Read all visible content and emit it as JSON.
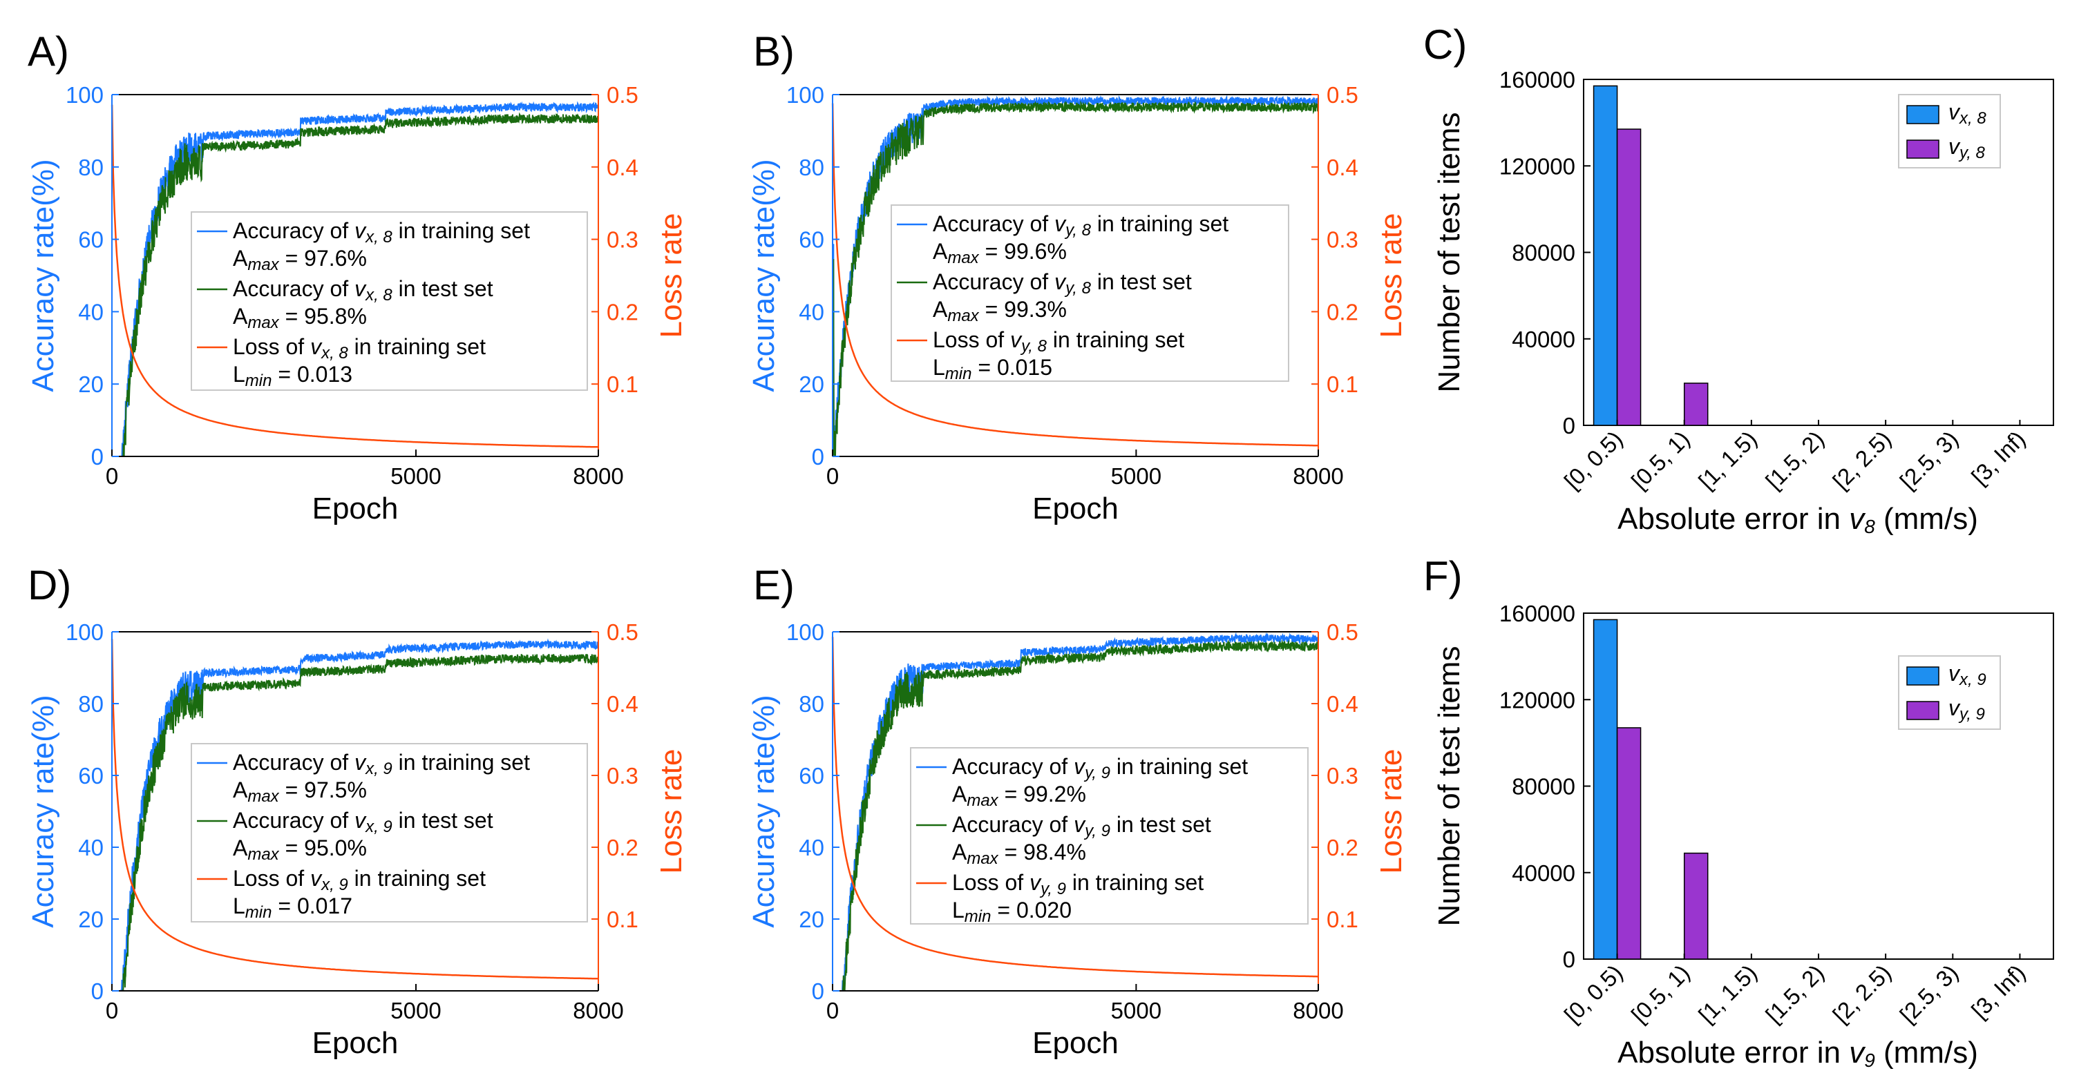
{
  "colors": {
    "train": "#1a78ff",
    "test": "#1a6b10",
    "loss": "#ff4a0a",
    "acc_axis": "#1a78ff",
    "loss_axis": "#ff4a0a",
    "bar_x": "#1e8ff0",
    "bar_y": "#9a35cf"
  },
  "chart_data": [
    {
      "id": "A",
      "label": "A)",
      "type": "line",
      "xlabel": "Epoch",
      "ylabel_left": "Accuracy rate(%)",
      "ylabel_right": "Loss rate",
      "xlim": [
        0,
        8000
      ],
      "ylim_left": [
        0,
        100
      ],
      "ylim_right": [
        0,
        0.5
      ],
      "xticks": [
        0,
        5000,
        8000
      ],
      "yticks_left": [
        0,
        20,
        40,
        60,
        80,
        100
      ],
      "yticks_right": [
        0.1,
        0.2,
        0.3,
        0.4,
        0.5
      ],
      "x_tick_labels": [
        "0",
        "5000",
        "8000"
      ],
      "yleft_tick_labels": [
        "0",
        "20",
        "40",
        "60",
        "80",
        "100"
      ],
      "yright_tick_labels": [
        "0.1",
        "0.2",
        "0.3",
        "0.4",
        "0.5"
      ],
      "series": [
        {
          "name": "Accuracy of vx, 8 in training set",
          "role": "train",
          "final_accuracy": 97.6
        },
        {
          "name": "Accuracy of vx, 8 in test set",
          "role": "test",
          "final_accuracy": 95.8
        },
        {
          "name": "Loss of vx, 8 in training set",
          "role": "loss",
          "final_loss": 0.013
        }
      ],
      "legend": [
        {
          "pre": "Accuracy of ",
          "v": "v",
          "sub": "x, 8",
          "post": " in training set",
          "stat_pre": "A",
          "stat_sub": "max",
          "stat_post": " = 97.6%"
        },
        {
          "pre": "Accuracy of ",
          "v": "v",
          "sub": "x, 8",
          "post": " in test set",
          "stat_pre": "A",
          "stat_sub": "max",
          "stat_post": " = 95.8%"
        },
        {
          "pre": "Loss of ",
          "v": "v",
          "sub": "x, 8",
          "post": " in training set",
          "stat_pre": "L",
          "stat_sub": "min",
          "stat_post": " = 0.013"
        }
      ]
    },
    {
      "id": "B",
      "label": "B)",
      "type": "line",
      "xlabel": "Epoch",
      "ylabel_left": "Accuracy rate(%)",
      "ylabel_right": "Loss rate",
      "xlim": [
        0,
        8000
      ],
      "ylim_left": [
        0,
        100
      ],
      "ylim_right": [
        0,
        0.5
      ],
      "xticks": [
        0,
        5000,
        8000
      ],
      "yticks_left": [
        0,
        20,
        40,
        60,
        80,
        100
      ],
      "yticks_right": [
        0.1,
        0.2,
        0.3,
        0.4,
        0.5
      ],
      "x_tick_labels": [
        "0",
        "5000",
        "8000"
      ],
      "yleft_tick_labels": [
        "0",
        "20",
        "40",
        "60",
        "80",
        "100"
      ],
      "yright_tick_labels": [
        "0.1",
        "0.2",
        "0.3",
        "0.4",
        "0.5"
      ],
      "series": [
        {
          "name": "Accuracy of vy, 8 in training set",
          "role": "train",
          "final_accuracy": 99.6
        },
        {
          "name": "Accuracy of vy, 8 in test set",
          "role": "test",
          "final_accuracy": 99.3
        },
        {
          "name": "Loss of vy, 8 in training set",
          "role": "loss",
          "final_loss": 0.015
        }
      ],
      "legend": [
        {
          "pre": "Accuracy of ",
          "v": "v",
          "sub": "y, 8",
          "post": " in training set",
          "stat_pre": "A",
          "stat_sub": "max",
          "stat_post": " = 99.6%"
        },
        {
          "pre": "Accuracy of ",
          "v": "v",
          "sub": "y, 8",
          "post": " in test set",
          "stat_pre": "A",
          "stat_sub": "max",
          "stat_post": " = 99.3%"
        },
        {
          "pre": "Loss of ",
          "v": "v",
          "sub": "y, 8",
          "post": " in training set",
          "stat_pre": "L",
          "stat_sub": "min",
          "stat_post": " = 0.015"
        }
      ]
    },
    {
      "id": "C",
      "label": "C)",
      "type": "bar",
      "xlabel_pre": "Absolute error in ",
      "xlabel_v": "v",
      "xlabel_sub": "8",
      "xlabel_post": " (mm/s)",
      "ylabel": "Number of test items",
      "ylim": [
        0,
        160000
      ],
      "yticks": [
        0,
        40000,
        80000,
        120000,
        160000
      ],
      "ytick_labels": [
        "0",
        "40000",
        "80000",
        "120000",
        "160000"
      ],
      "categories": [
        "[0, 0.5)",
        "[0.5, 1)",
        "[1, 1.5)",
        "[1.5, 2)",
        "[2, 2.5)",
        "[2.5, 3)",
        "[3, Inf)"
      ],
      "series": [
        {
          "name": "vx, 8",
          "v": "v",
          "sub": "x, 8",
          "role": "bar_x",
          "values": [
            157000,
            0,
            0,
            0,
            0,
            0,
            0
          ]
        },
        {
          "name": "vy, 8",
          "v": "v",
          "sub": "y, 8",
          "role": "bar_y",
          "values": [
            137000,
            19500,
            0,
            0,
            0,
            0,
            0
          ]
        }
      ]
    },
    {
      "id": "D",
      "label": "D)",
      "type": "line",
      "xlabel": "Epoch",
      "ylabel_left": "Accuracy rate(%)",
      "ylabel_right": "Loss rate",
      "xlim": [
        0,
        8000
      ],
      "ylim_left": [
        0,
        100
      ],
      "ylim_right": [
        0,
        0.5
      ],
      "xticks": [
        0,
        5000,
        8000
      ],
      "yticks_left": [
        0,
        20,
        40,
        60,
        80,
        100
      ],
      "yticks_right": [
        0.1,
        0.2,
        0.3,
        0.4,
        0.5
      ],
      "x_tick_labels": [
        "0",
        "5000",
        "8000"
      ],
      "yleft_tick_labels": [
        "0",
        "20",
        "40",
        "60",
        "80",
        "100"
      ],
      "yright_tick_labels": [
        "0.1",
        "0.2",
        "0.3",
        "0.4",
        "0.5"
      ],
      "series": [
        {
          "name": "Accuracy of vx, 9 in training set",
          "role": "train",
          "final_accuracy": 97.5
        },
        {
          "name": "Accuracy of vx, 9 in test set",
          "role": "test",
          "final_accuracy": 95.0
        },
        {
          "name": "Loss of vx, 9 in training set",
          "role": "loss",
          "final_loss": 0.017
        }
      ],
      "legend": [
        {
          "pre": "Accuracy of ",
          "v": "v",
          "sub": "x, 9",
          "post": " in training set",
          "stat_pre": "A",
          "stat_sub": "max",
          "stat_post": " = 97.5%"
        },
        {
          "pre": "Accuracy of ",
          "v": "v",
          "sub": "x, 9",
          "post": " in test set",
          "stat_pre": "A",
          "stat_sub": "max",
          "stat_post": " = 95.0%"
        },
        {
          "pre": "Loss of ",
          "v": "v",
          "sub": "x, 9",
          "post": " in training set",
          "stat_pre": "L",
          "stat_sub": "min",
          "stat_post": " = 0.017"
        }
      ]
    },
    {
      "id": "E",
      "label": "E)",
      "type": "line",
      "xlabel": "Epoch",
      "ylabel_left": "Accuracy rate(%)",
      "ylabel_right": "Loss rate",
      "xlim": [
        0,
        8000
      ],
      "ylim_left": [
        0,
        100
      ],
      "ylim_right": [
        0,
        0.5
      ],
      "xticks": [
        0,
        5000,
        8000
      ],
      "yticks_left": [
        0,
        20,
        40,
        60,
        80,
        100
      ],
      "yticks_right": [
        0.1,
        0.2,
        0.3,
        0.4,
        0.5
      ],
      "x_tick_labels": [
        "0",
        "5000",
        "8000"
      ],
      "yleft_tick_labels": [
        "0",
        "20",
        "40",
        "60",
        "80",
        "100"
      ],
      "yright_tick_labels": [
        "0.1",
        "0.2",
        "0.3",
        "0.4",
        "0.5"
      ],
      "series": [
        {
          "name": "Accuracy of vy, 9 in training set",
          "role": "train",
          "final_accuracy": 99.2
        },
        {
          "name": "Accuracy of vy, 9 in test set",
          "role": "test",
          "final_accuracy": 98.4
        },
        {
          "name": "Loss of vy, 9 in training set",
          "role": "loss",
          "final_loss": 0.02
        }
      ],
      "legend": [
        {
          "pre": "Accuracy of ",
          "v": "v",
          "sub": "y, 9",
          "post": " in training set",
          "stat_pre": "A",
          "stat_sub": "max",
          "stat_post": " = 99.2%"
        },
        {
          "pre": "Accuracy of ",
          "v": "v",
          "sub": "y, 9",
          "post": " in test set",
          "stat_pre": "A",
          "stat_sub": "max",
          "stat_post": " = 98.4%"
        },
        {
          "pre": "Loss of ",
          "v": "v",
          "sub": "y, 9",
          "post": " in training set",
          "stat_pre": "L",
          "stat_sub": "min",
          "stat_post": " = 0.020"
        }
      ]
    },
    {
      "id": "F",
      "label": "F)",
      "type": "bar",
      "xlabel_pre": "Absolute error in ",
      "xlabel_v": "v",
      "xlabel_sub": "9",
      "xlabel_post": " (mm/s)",
      "ylabel": "Number of test items",
      "ylim": [
        0,
        160000
      ],
      "yticks": [
        0,
        40000,
        80000,
        120000,
        160000
      ],
      "ytick_labels": [
        "0",
        "40000",
        "80000",
        "120000",
        "160000"
      ],
      "categories": [
        "[0, 0.5)",
        "[0.5, 1)",
        "[1, 1.5)",
        "[1.5, 2)",
        "[2, 2.5)",
        "[2.5, 3)",
        "[3, Inf)"
      ],
      "series": [
        {
          "name": "vx, 9",
          "v": "v",
          "sub": "x, 9",
          "role": "bar_x",
          "values": [
            157000,
            0,
            0,
            0,
            0,
            0,
            0
          ]
        },
        {
          "name": "vy, 9",
          "v": "v",
          "sub": "y, 9",
          "role": "bar_y",
          "values": [
            107000,
            49000,
            0,
            0,
            0,
            0,
            0
          ]
        }
      ]
    }
  ]
}
